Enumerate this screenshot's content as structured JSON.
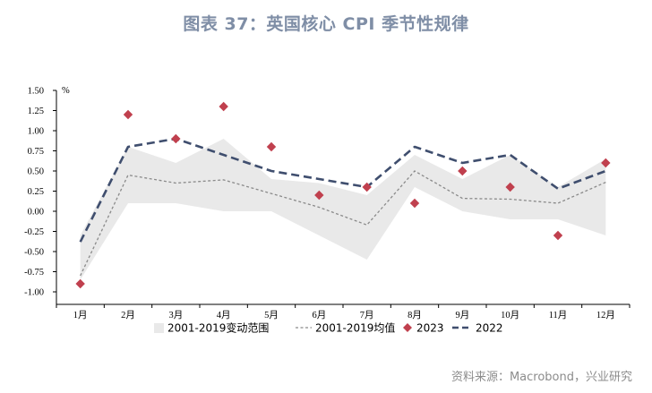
{
  "title": "图表 37：英国核心 CPI 季节性规律",
  "source": "资料来源：Macrobond，兴业研究",
  "colors": {
    "band": "#e9e9e9",
    "avg": "#8a8a8a",
    "marker2023": "#c0404e",
    "line2022": "#3f4e6e",
    "title": "#7f8ea6"
  },
  "chart_data": {
    "type": "line",
    "unit_label": "%",
    "categories": [
      "1月",
      "2月",
      "3月",
      "4月",
      "5月",
      "6月",
      "7月",
      "8月",
      "9月",
      "10月",
      "11月",
      "12月"
    ],
    "ylim": [
      -1.0,
      1.5
    ],
    "yticks": [
      "1.50",
      "1.25",
      "1.00",
      "0.75",
      "0.50",
      "0.25",
      "0.00",
      "-0.25",
      "-0.50",
      "-0.75",
      "-1.00"
    ],
    "ytick_values": [
      1.5,
      1.25,
      1.0,
      0.75,
      0.5,
      0.25,
      0.0,
      -0.25,
      -0.5,
      -0.75,
      -1.0
    ],
    "band": {
      "name": "2001-2019变动范围",
      "upper": [
        -0.3,
        0.8,
        0.6,
        0.9,
        0.4,
        0.35,
        0.2,
        0.7,
        0.4,
        0.7,
        0.3,
        0.65
      ],
      "lower": [
        -0.85,
        0.1,
        0.1,
        0.0,
        0.0,
        -0.3,
        -0.6,
        0.3,
        0.0,
        -0.1,
        -0.1,
        -0.3
      ]
    },
    "series": [
      {
        "name": "2001-2019均值",
        "style": "dotted",
        "values": [
          -0.8,
          0.45,
          0.35,
          0.39,
          0.22,
          0.05,
          -0.17,
          0.5,
          0.16,
          0.15,
          0.1,
          0.36
        ]
      },
      {
        "name": "2023",
        "style": "marker",
        "values": [
          -0.9,
          1.2,
          0.9,
          1.3,
          0.8,
          0.2,
          0.3,
          0.1,
          0.5,
          0.3,
          -0.3,
          0.6
        ]
      },
      {
        "name": "2022",
        "style": "dashed",
        "values": [
          -0.38,
          0.8,
          0.9,
          0.7,
          0.5,
          0.4,
          0.3,
          0.8,
          0.6,
          0.7,
          0.28,
          0.5
        ]
      }
    ],
    "legend_position": "bottom",
    "grid": false
  }
}
